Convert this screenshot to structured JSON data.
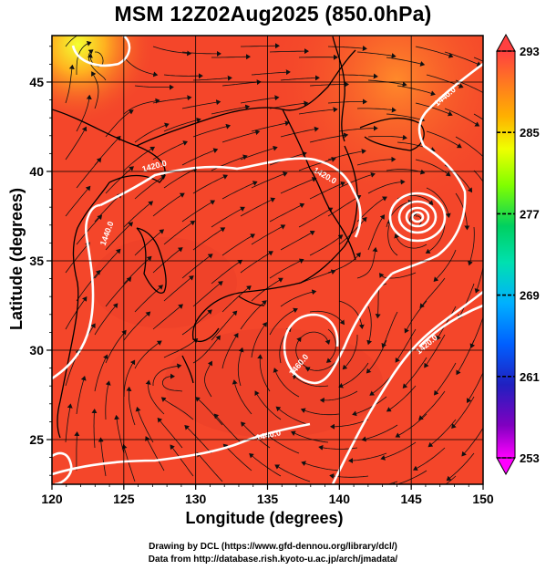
{
  "title": "MSM 12Z02Aug2025 (850.0hPa)",
  "xlabel": "Longitude (degrees)",
  "ylabel": "Latitude  (degrees)",
  "credits": {
    "line1": "Drawing by DCL (https://www.gfd-dennou.org/library/dcl/)",
    "line2": "Data from http://database.rish.kyoto-u.ac.jp/arch/jmadata/"
  },
  "map": {
    "lon_range": [
      120,
      150
    ],
    "lat_range": [
      22.5,
      47.6
    ],
    "lon_ticks": [
      "120",
      "125",
      "130",
      "135",
      "140",
      "145",
      "150"
    ],
    "lat_ticks": [
      "25",
      "30",
      "35",
      "40",
      "45"
    ],
    "field_color": "#f4462a",
    "coast_color": "#000000",
    "contour_color": "#ffffff",
    "contour_labels": [
      "1440.0",
      "1420.0",
      "1440.0",
      "1460.0",
      "1420.0",
      "1420.0",
      "1440.0"
    ]
  },
  "colorbar": {
    "min": 253,
    "max": 293,
    "ticks": [
      "293",
      "285",
      "277",
      "269",
      "261",
      "253"
    ]
  }
}
